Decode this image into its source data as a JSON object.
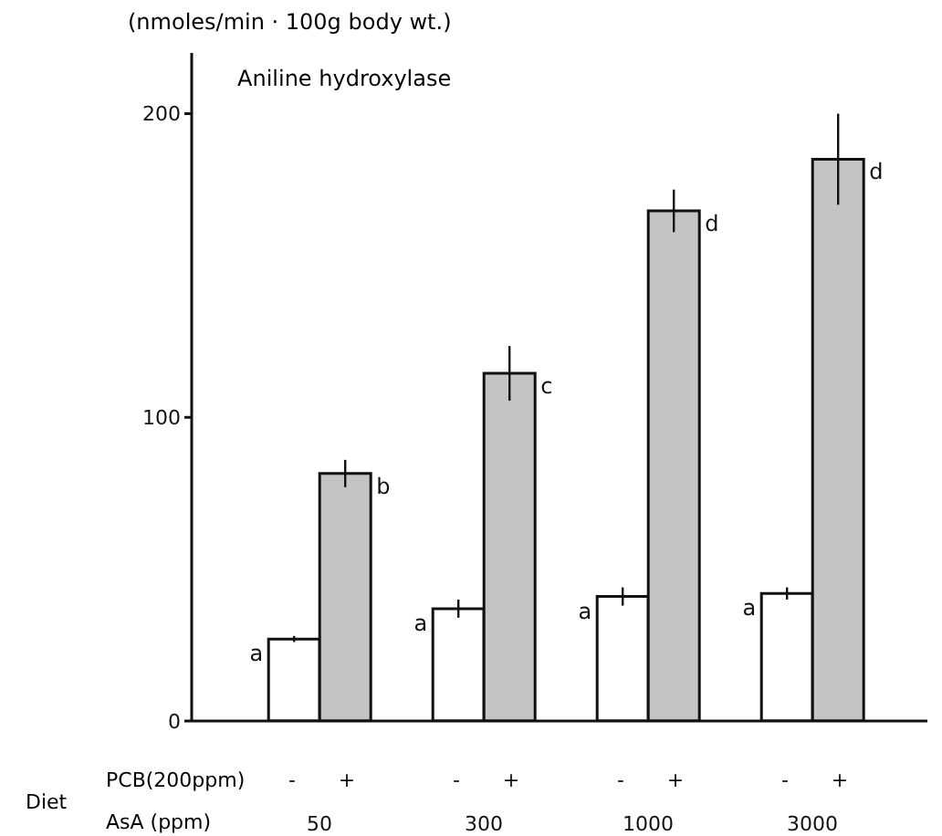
{
  "chart_data": {
    "type": "bar",
    "title": "Aniline hydroxylase",
    "ylabel": "(nmoles/min · 100g body wt.)",
    "categories": [
      "50",
      "300",
      "1000",
      "3000"
    ],
    "series": [
      {
        "name": "-",
        "color": "#ffffff",
        "values": [
          27,
          37,
          41,
          42
        ],
        "errors": [
          1,
          3,
          3,
          2
        ],
        "value_labels": [
          "a",
          "a",
          "a",
          "a"
        ]
      },
      {
        "name": "+",
        "color": "#c4c4c4",
        "values": [
          81.5,
          114.5,
          168,
          185
        ],
        "errors": [
          4.5,
          9,
          7,
          15
        ],
        "value_labels": [
          "b",
          "c",
          "d",
          "d"
        ]
      }
    ],
    "ylim": [
      0,
      220
    ],
    "yticks": [
      0,
      100,
      200
    ],
    "grid": false,
    "legend": false,
    "annotations": [
      "Diet",
      "PCB(200ppm)",
      "AsA (ppm)"
    ]
  }
}
